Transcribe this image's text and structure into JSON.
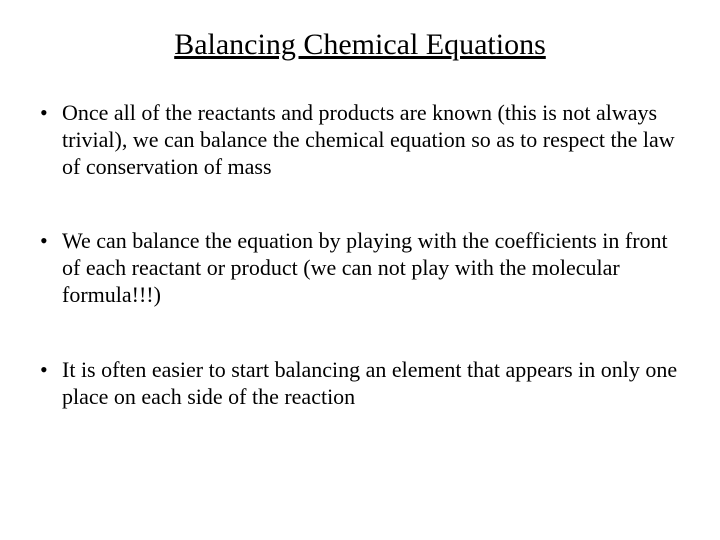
{
  "title": "Balancing Chemical Equations",
  "bullets": [
    "Once all of the reactants and products are known (this is not always trivial), we can balance the chemical equation so as to respect the law of conservation of mass",
    "We can balance the equation by playing with the coefficients in front of each reactant or product (we can not play with the molecular formula!!!)",
    "It is often easier to start balancing an element that appears in only one place on each side of the reaction"
  ],
  "colors": {
    "background": "#ffffff",
    "text": "#000000"
  },
  "typography": {
    "title_fontsize": 30,
    "body_fontsize": 22,
    "font_family": "Times New Roman"
  }
}
